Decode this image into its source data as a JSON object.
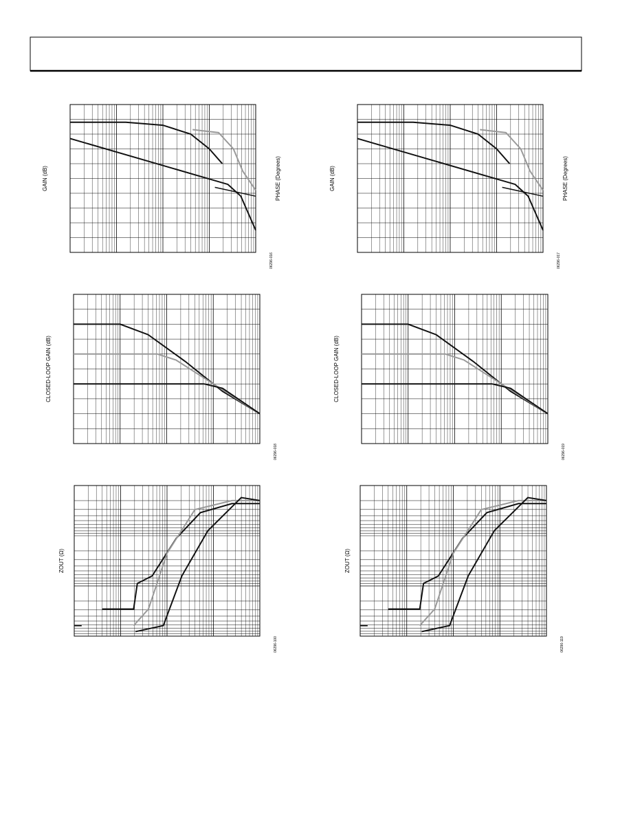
{
  "figures": [
    {
      "y_label": "GAIN (dB)",
      "y2_label": "PHASE (Degrees)",
      "id": "06296-016"
    },
    {
      "y_label": "GAIN (dB)",
      "y2_label": "PHASE (Degrees)",
      "id": "06296-017"
    },
    {
      "y_label": "CLOSED-LOOP GAIN (dB)",
      "id": "06296-018"
    },
    {
      "y_label": "CLOSED-LOOP GAIN (dB)",
      "id": "06296-019"
    },
    {
      "y_label": "ZOUT (Ω)",
      "id": "06296-100"
    },
    {
      "y_label": "ZOUT (Ω)",
      "id": "06296-119"
    }
  ]
}
